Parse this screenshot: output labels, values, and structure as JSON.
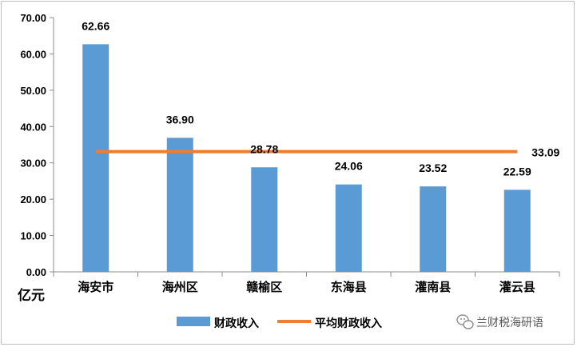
{
  "chart_data": {
    "type": "bar",
    "categories": [
      "海安市",
      "海州区",
      "赣榆区",
      "东海县",
      "灌南县",
      "灌云县"
    ],
    "series": [
      {
        "name": "财政收入",
        "type": "bar",
        "values": [
          62.66,
          36.9,
          28.78,
          24.06,
          23.52,
          22.59
        ],
        "color": "#5b9bd5"
      },
      {
        "name": "平均财政收入",
        "type": "line",
        "values": [
          33.09,
          33.09,
          33.09,
          33.09,
          33.09,
          33.09
        ],
        "color": "#ed7d31"
      }
    ],
    "data_labels": [
      "62.66",
      "36.90",
      "28.78",
      "24.06",
      "23.52",
      "22.59"
    ],
    "average_label": "33.09",
    "yticks": [
      "0.00",
      "10.00",
      "20.00",
      "30.00",
      "40.00",
      "50.00",
      "60.00",
      "70.00"
    ],
    "ylim": [
      0,
      70
    ],
    "unit_label": "亿元",
    "grid": false,
    "legend_position": "bottom"
  },
  "watermark": "兰财税海研语"
}
